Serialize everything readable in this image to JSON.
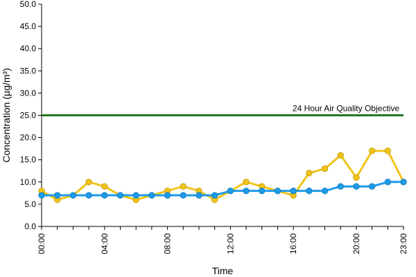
{
  "chart_data": {
    "type": "line",
    "title": "",
    "xlabel": "Time",
    "ylabel": "Concentration (µg/m³)",
    "ylim": [
      0,
      50
    ],
    "yticks": [
      "0.0",
      "5.0",
      "10.0",
      "15.0",
      "20.0",
      "25.0",
      "30.0",
      "35.0",
      "40.0",
      "45.0",
      "50.0"
    ],
    "x": [
      "00:00",
      "01:00",
      "02:00",
      "03:00",
      "04:00",
      "05:00",
      "06:00",
      "07:00",
      "08:00",
      "09:00",
      "10:00",
      "11:00",
      "12:00",
      "13:00",
      "14:00",
      "15:00",
      "16:00",
      "17:00",
      "18:00",
      "19:00",
      "20:00",
      "21:00",
      "22:00",
      "23:00"
    ],
    "xticks": [
      "00:00",
      "04:00",
      "08:00",
      "12:00",
      "16:00",
      "20:00",
      "23:00"
    ],
    "grid": false,
    "legend": "none",
    "series": [
      {
        "color": "#f0c419",
        "values": [
          8,
          6,
          7,
          10,
          9,
          7,
          6,
          7,
          8,
          9,
          8,
          6,
          8,
          10,
          9,
          8,
          7,
          12,
          13,
          16,
          11,
          17,
          17,
          10
        ]
      },
      {
        "color": "#1e9be8",
        "values": [
          7,
          7,
          7,
          7,
          7,
          7,
          7,
          7,
          7,
          7,
          7,
          7,
          8,
          8,
          8,
          8,
          8,
          8,
          8,
          9,
          9,
          9,
          10,
          10
        ]
      }
    ],
    "reference_line": {
      "value": 25,
      "label": "24 Hour Air Quality Objective",
      "color": "#1f7a1f"
    }
  }
}
